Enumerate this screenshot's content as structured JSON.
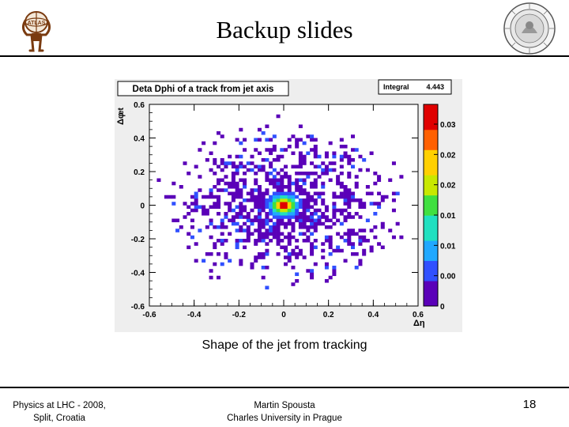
{
  "slide": {
    "title": "Backup slides",
    "caption": "Shape of the jet from tracking",
    "footer_left": [
      "Physics at LHC - 2008,",
      "Split, Croatia"
    ],
    "footer_center": [
      "Martin Spousta",
      "Charles University in Prague"
    ],
    "page_number": "18"
  },
  "logos": {
    "left": "ATLAS",
    "right_icon": "university-seal-icon"
  },
  "chart_data": {
    "type": "heatmap",
    "title": "Deta Dphi of a track from jet axis",
    "stats_box": {
      "label": "Integral",
      "value": "4.443"
    },
    "xlabel": "Δη",
    "ylabel": "Δφ",
    "ylabel_extra": "et",
    "xlim": [
      -0.6,
      0.6
    ],
    "ylim": [
      -0.6,
      0.6
    ],
    "xticks": [
      "-0.6",
      "-0.4",
      "-0.2",
      "0",
      "0.2",
      "0.4",
      "0.6"
    ],
    "yticks": [
      "0.6",
      "0.4",
      "0.2",
      "0",
      "-0.2",
      "-0.4",
      "-0.6"
    ],
    "colorbar": {
      "ticks": [
        "0.03",
        "0.02",
        "0.02",
        "0.01",
        "0.01",
        "0.00",
        "0"
      ],
      "colors": [
        "#5a00b8",
        "#3050ff",
        "#20a8ff",
        "#20e0c0",
        "#40e040",
        "#c8e800",
        "#ffd000",
        "#ff6000",
        "#e00000"
      ]
    },
    "distribution": {
      "center": [
        0.0,
        0.0
      ],
      "core_sigma": 0.035,
      "halo_radius_x": 0.6,
      "halo_radius_y": 0.55,
      "bins_x": 72,
      "bins_y": 60
    }
  }
}
